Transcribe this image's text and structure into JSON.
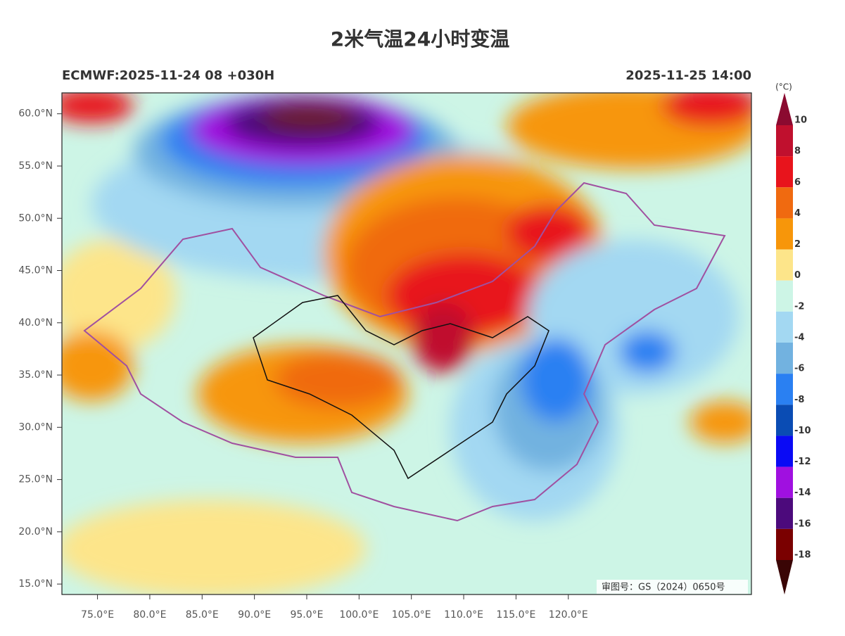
{
  "header": {
    "title": "2米气温24小时变温",
    "model_run": "ECMWF:2025-11-24 08 +030H",
    "valid_time": "2025-11-25 14:00"
  },
  "map": {
    "lon_lim": [
      71.6,
      137.5
    ],
    "lat_lim": [
      14.0,
      62.0
    ],
    "lon_ticks": [
      {
        "value": 75,
        "label": "75.0°E"
      },
      {
        "value": 80,
        "label": "80.0°E"
      },
      {
        "value": 85,
        "label": "85.0°E"
      },
      {
        "value": 90,
        "label": "90.0°E"
      },
      {
        "value": 95,
        "label": "95.0°E"
      },
      {
        "value": 100,
        "label": "100.0°E"
      },
      {
        "value": 105,
        "label": "105.0°E"
      },
      {
        "value": 110,
        "label": "110.0°E"
      },
      {
        "value": 115,
        "label": "115.0°E"
      },
      {
        "value": 120,
        "label": "120.0°E"
      }
    ],
    "lat_ticks": [
      {
        "value": 60,
        "label": "60.0°N"
      },
      {
        "value": 55,
        "label": "55.0°N"
      },
      {
        "value": 50,
        "label": "50.0°N"
      },
      {
        "value": 45,
        "label": "45.0°N"
      },
      {
        "value": 40,
        "label": "40.0°N"
      },
      {
        "value": 35,
        "label": "35.0°N"
      },
      {
        "value": 30,
        "label": "30.0°N"
      },
      {
        "value": 25,
        "label": "25.0°N"
      },
      {
        "value": 20,
        "label": "20.0°N"
      },
      {
        "value": 15,
        "label": "15.0°N"
      }
    ],
    "approval_number": "审图号：GS（2024）0650号",
    "colorbar": {
      "unit": "(°C)",
      "levels": [
        10,
        8,
        6,
        4,
        2,
        0,
        -2,
        -4,
        -6,
        -8,
        -10,
        -12,
        -14,
        -16,
        -18
      ],
      "colors": [
        "#c0102e",
        "#e8141c",
        "#f06a10",
        "#f7960a",
        "#fde58a",
        "#cdf5e6",
        "#a3d8f2",
        "#72b2e0",
        "#2a80f2",
        "#0a4cb4",
        "#0a0af5",
        "#a010e0",
        "#4c0a7c",
        "#7a0000"
      ],
      "over_color": "#8b0a30",
      "under_color": "#3a0505"
    }
  }
}
